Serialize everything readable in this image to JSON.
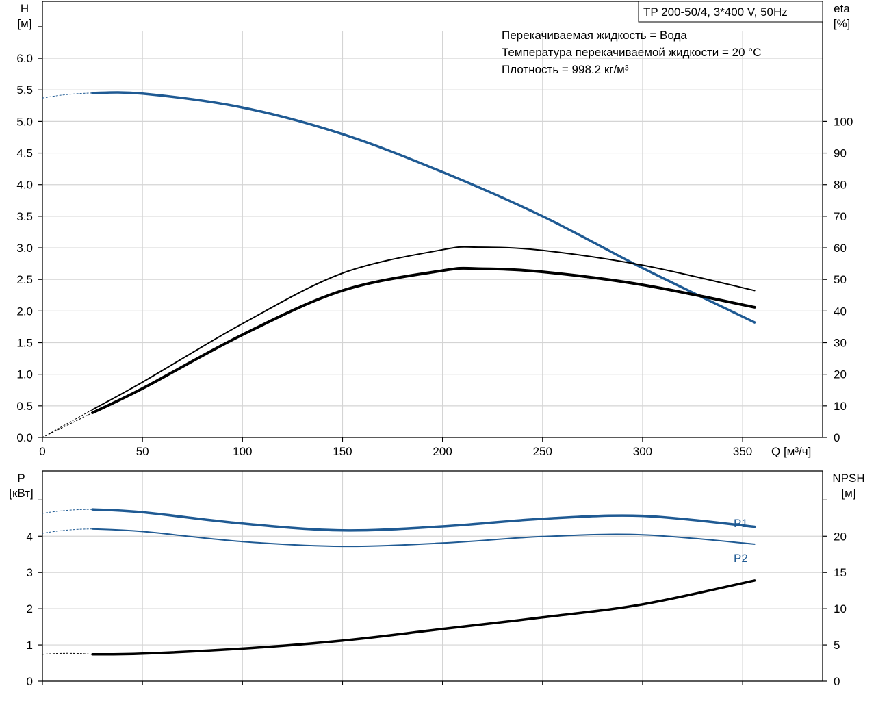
{
  "pump_title": "TP 200-50/4, 3*400 V, 50Hz",
  "notes": [
    "Перекачиваемая жидкость = Вода",
    "Температура перекачиваемой жидкости = 20 °C",
    "Плотность = 998.2 кг/м³"
  ],
  "colors": {
    "blue": "#1f5a93",
    "black": "#000000",
    "grid": "#d4d4d4"
  },
  "chart_data": [
    {
      "type": "line",
      "xlabel": "Q [м³/ч]",
      "ylabel_left": [
        "H",
        "[м]"
      ],
      "ylabel_right": [
        "eta",
        "[%]"
      ],
      "xlim": [
        0,
        390
      ],
      "ylim_left": [
        0,
        6.9
      ],
      "ylim_right": [
        0,
        138
      ],
      "x_ticks": [
        "0",
        "50",
        "100",
        "150",
        "200",
        "250",
        "300",
        "350"
      ],
      "y_ticks_left": [
        "0.0",
        "0.5",
        "1.0",
        "1.5",
        "2.0",
        "2.5",
        "3.0",
        "3.5",
        "4.0",
        "4.5",
        "5.0",
        "5.5",
        "6.0"
      ],
      "y_ticks_right": [
        "0",
        "10",
        "20",
        "30",
        "40",
        "50",
        "60",
        "70",
        "80",
        "90",
        "100"
      ],
      "series": [
        {
          "color": "#1f5a93",
          "width": 3.5,
          "axis": "left",
          "x": [
            25,
            50,
            100,
            150,
            200,
            250,
            300,
            356
          ],
          "y": [
            5.45,
            5.44,
            5.22,
            4.8,
            4.2,
            3.5,
            2.68,
            1.82
          ],
          "extrapolated_to_x": 0,
          "extrapolated_y": 5.37
        },
        {
          "color": "#000000",
          "width": 2,
          "axis": "right",
          "x": [
            25,
            50,
            100,
            150,
            200,
            218,
            250,
            300,
            356
          ],
          "y": [
            8.8,
            17.5,
            36,
            52,
            59.4,
            60.2,
            59.2,
            54.5,
            46.5
          ],
          "extrapolated_to_x": 0,
          "extrapolated_y": 0
        },
        {
          "color": "#000000",
          "width": 4,
          "axis": "right",
          "x": [
            25,
            50,
            100,
            150,
            200,
            218,
            250,
            300,
            356
          ],
          "y": [
            7.8,
            15.5,
            32.5,
            46.5,
            52.8,
            53.4,
            52.4,
            48.3,
            41.2
          ],
          "extrapolated_to_x": 0,
          "extrapolated_y": 0
        }
      ]
    },
    {
      "type": "line",
      "ylabel_left": [
        "P",
        "[кВт]"
      ],
      "ylabel_right": [
        "NPSH",
        "[м]"
      ],
      "xlim": [
        0,
        390
      ],
      "ylim_left": [
        0,
        5.8
      ],
      "ylim_right": [
        0,
        29
      ],
      "y_ticks_left": [
        "0",
        "1",
        "2",
        "3",
        "4"
      ],
      "y_ticks_right": [
        "0",
        "5",
        "10",
        "15",
        "20"
      ],
      "series": [
        {
          "name": "P1",
          "color": "#1f5a93",
          "width": 3.5,
          "axis": "left",
          "x": [
            25,
            50,
            100,
            150,
            200,
            250,
            300,
            356
          ],
          "y": [
            4.74,
            4.66,
            4.35,
            4.16,
            4.27,
            4.48,
            4.56,
            4.26
          ],
          "extrapolated_to_x": 0,
          "extrapolated_y": 4.63
        },
        {
          "name": "P2",
          "color": "#1f5a93",
          "width": 2,
          "axis": "left",
          "x": [
            25,
            50,
            100,
            150,
            200,
            250,
            300,
            356
          ],
          "y": [
            4.2,
            4.13,
            3.85,
            3.72,
            3.81,
            3.99,
            4.04,
            3.78
          ],
          "extrapolated_to_x": 0,
          "extrapolated_y": 4.08
        },
        {
          "color": "#000000",
          "width": 3.5,
          "axis": "right",
          "x": [
            25,
            50,
            100,
            150,
            200,
            250,
            300,
            356
          ],
          "y": [
            3.7,
            3.8,
            4.5,
            5.6,
            7.2,
            8.8,
            10.6,
            13.9
          ],
          "extrapolated_to_x": 0,
          "extrapolated_y": 3.7
        }
      ]
    }
  ]
}
